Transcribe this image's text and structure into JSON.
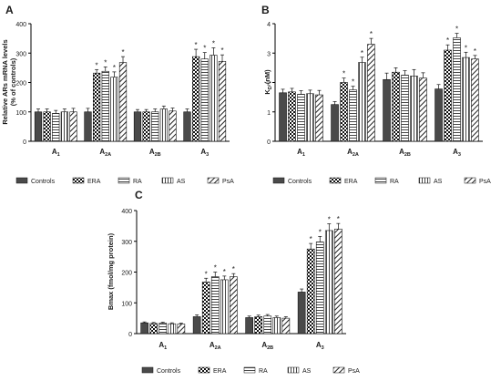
{
  "chart_data": [
    {
      "panel": "A",
      "type": "bar",
      "ylabel": [
        "Relative ARs mRNA levels",
        "(% of controls)"
      ],
      "ylim": [
        0,
        400
      ],
      "yticks": [
        0,
        100,
        200,
        300,
        400
      ],
      "categories": [
        {
          "base": "A",
          "sub": "1"
        },
        {
          "base": "A",
          "sub": "2A"
        },
        {
          "base": "A",
          "sub": "2B"
        },
        {
          "base": "A",
          "sub": "3"
        }
      ],
      "series": [
        {
          "name": "Controls",
          "values": [
            100,
            100,
            100,
            100
          ],
          "errors": [
            10,
            12,
            8,
            10
          ],
          "sig": [
            false,
            false,
            false,
            false
          ]
        },
        {
          "name": "ERA",
          "values": [
            100,
            232,
            100,
            288
          ],
          "errors": [
            10,
            12,
            8,
            25
          ],
          "sig": [
            false,
            true,
            false,
            true
          ]
        },
        {
          "name": "RA",
          "values": [
            95,
            238,
            100,
            280
          ],
          "errors": [
            10,
            15,
            10,
            22
          ],
          "sig": [
            false,
            true,
            false,
            true
          ]
        },
        {
          "name": "AS",
          "values": [
            100,
            218,
            110,
            293
          ],
          "errors": [
            10,
            18,
            10,
            25
          ],
          "sig": [
            false,
            true,
            false,
            true
          ]
        },
        {
          "name": "PsA",
          "values": [
            100,
            268,
            103,
            272
          ],
          "errors": [
            12,
            20,
            10,
            22
          ],
          "sig": [
            false,
            true,
            false,
            true
          ]
        }
      ]
    },
    {
      "panel": "B",
      "type": "bar",
      "ylabel": [
        "K",
        "D",
        " (nM)"
      ],
      "ylim": [
        0,
        4
      ],
      "yticks": [
        0,
        1,
        2,
        3,
        4
      ],
      "categories": [
        {
          "base": "A",
          "sub": "1"
        },
        {
          "base": "A",
          "sub": "2A"
        },
        {
          "base": "A",
          "sub": "2B"
        },
        {
          "base": "A",
          "sub": "3"
        }
      ],
      "series": [
        {
          "name": "Controls",
          "values": [
            1.65,
            1.25,
            2.1,
            1.78
          ],
          "errors": [
            0.12,
            0.1,
            0.22,
            0.15
          ],
          "sig": [
            false,
            false,
            false,
            false
          ]
        },
        {
          "name": "ERA",
          "values": [
            1.68,
            2.0,
            2.35,
            3.1
          ],
          "errors": [
            0.12,
            0.15,
            0.15,
            0.18
          ],
          "sig": [
            false,
            true,
            false,
            true
          ]
        },
        {
          "name": "RA",
          "values": [
            1.6,
            1.75,
            2.25,
            3.52
          ],
          "errors": [
            0.12,
            0.12,
            0.15,
            0.15
          ],
          "sig": [
            false,
            true,
            false,
            true
          ]
        },
        {
          "name": "AS",
          "values": [
            1.62,
            2.68,
            2.22,
            2.85
          ],
          "errors": [
            0.12,
            0.18,
            0.22,
            0.18
          ],
          "sig": [
            false,
            true,
            false,
            true
          ]
        },
        {
          "name": "PsA",
          "values": [
            1.58,
            3.3,
            2.15,
            2.8
          ],
          "errors": [
            0.15,
            0.2,
            0.18,
            0.12
          ],
          "sig": [
            false,
            true,
            false,
            true
          ]
        }
      ]
    },
    {
      "panel": "C",
      "type": "bar",
      "ylabel": [
        "Bmax (fmol/mg protein)"
      ],
      "ylim": [
        0,
        400
      ],
      "yticks": [
        0,
        100,
        200,
        300,
        400
      ],
      "categories": [
        {
          "base": "A",
          "sub": "1"
        },
        {
          "base": "A",
          "sub": "2A"
        },
        {
          "base": "A",
          "sub": "2B"
        },
        {
          "base": "A",
          "sub": "3"
        }
      ],
      "series": [
        {
          "name": "Controls",
          "values": [
            35,
            55,
            52,
            135
          ],
          "errors": [
            3,
            6,
            5,
            10
          ],
          "sig": [
            false,
            false,
            false,
            false
          ]
        },
        {
          "name": "ERA",
          "values": [
            33,
            168,
            55,
            275
          ],
          "errors": [
            3,
            12,
            5,
            18
          ],
          "sig": [
            false,
            true,
            false,
            true
          ]
        },
        {
          "name": "RA",
          "values": [
            34,
            185,
            57,
            298
          ],
          "errors": [
            3,
            15,
            5,
            18
          ],
          "sig": [
            false,
            true,
            false,
            true
          ]
        },
        {
          "name": "AS",
          "values": [
            32,
            175,
            52,
            335
          ],
          "errors": [
            3,
            12,
            5,
            22
          ],
          "sig": [
            false,
            true,
            false,
            true
          ]
        },
        {
          "name": "PsA",
          "values": [
            31,
            185,
            50,
            340
          ],
          "errors": [
            3,
            10,
            5,
            18
          ],
          "sig": [
            false,
            true,
            false,
            true
          ]
        }
      ]
    }
  ],
  "legend": [
    "Controls",
    "ERA",
    "RA",
    "AS",
    "PsA"
  ],
  "significance_marker": "*"
}
